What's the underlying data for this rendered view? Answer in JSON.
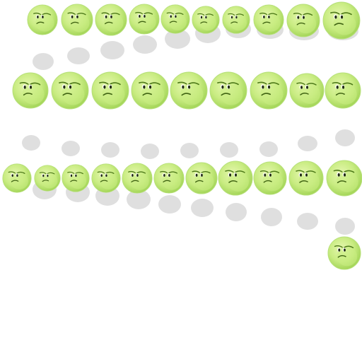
{
  "sprite_sheet": {
    "character": "grumpy-green-ball",
    "colors": {
      "body_light": "#e6f7b0",
      "body_mid": "#c9ec82",
      "body_dark": "#a5d65a",
      "outline": "#b7e07a",
      "brow": "#4d7a18",
      "eye": "#1f2a10",
      "mouth": "#3f6312",
      "shadow": "#dcdcdc"
    },
    "rows": [
      {
        "name": "row-1",
        "frame_count": 10
      },
      {
        "name": "row-2",
        "frame_count": 9
      },
      {
        "name": "row-3",
        "frame_count": 11
      },
      {
        "name": "row-4",
        "frame_count": 1
      }
    ]
  }
}
